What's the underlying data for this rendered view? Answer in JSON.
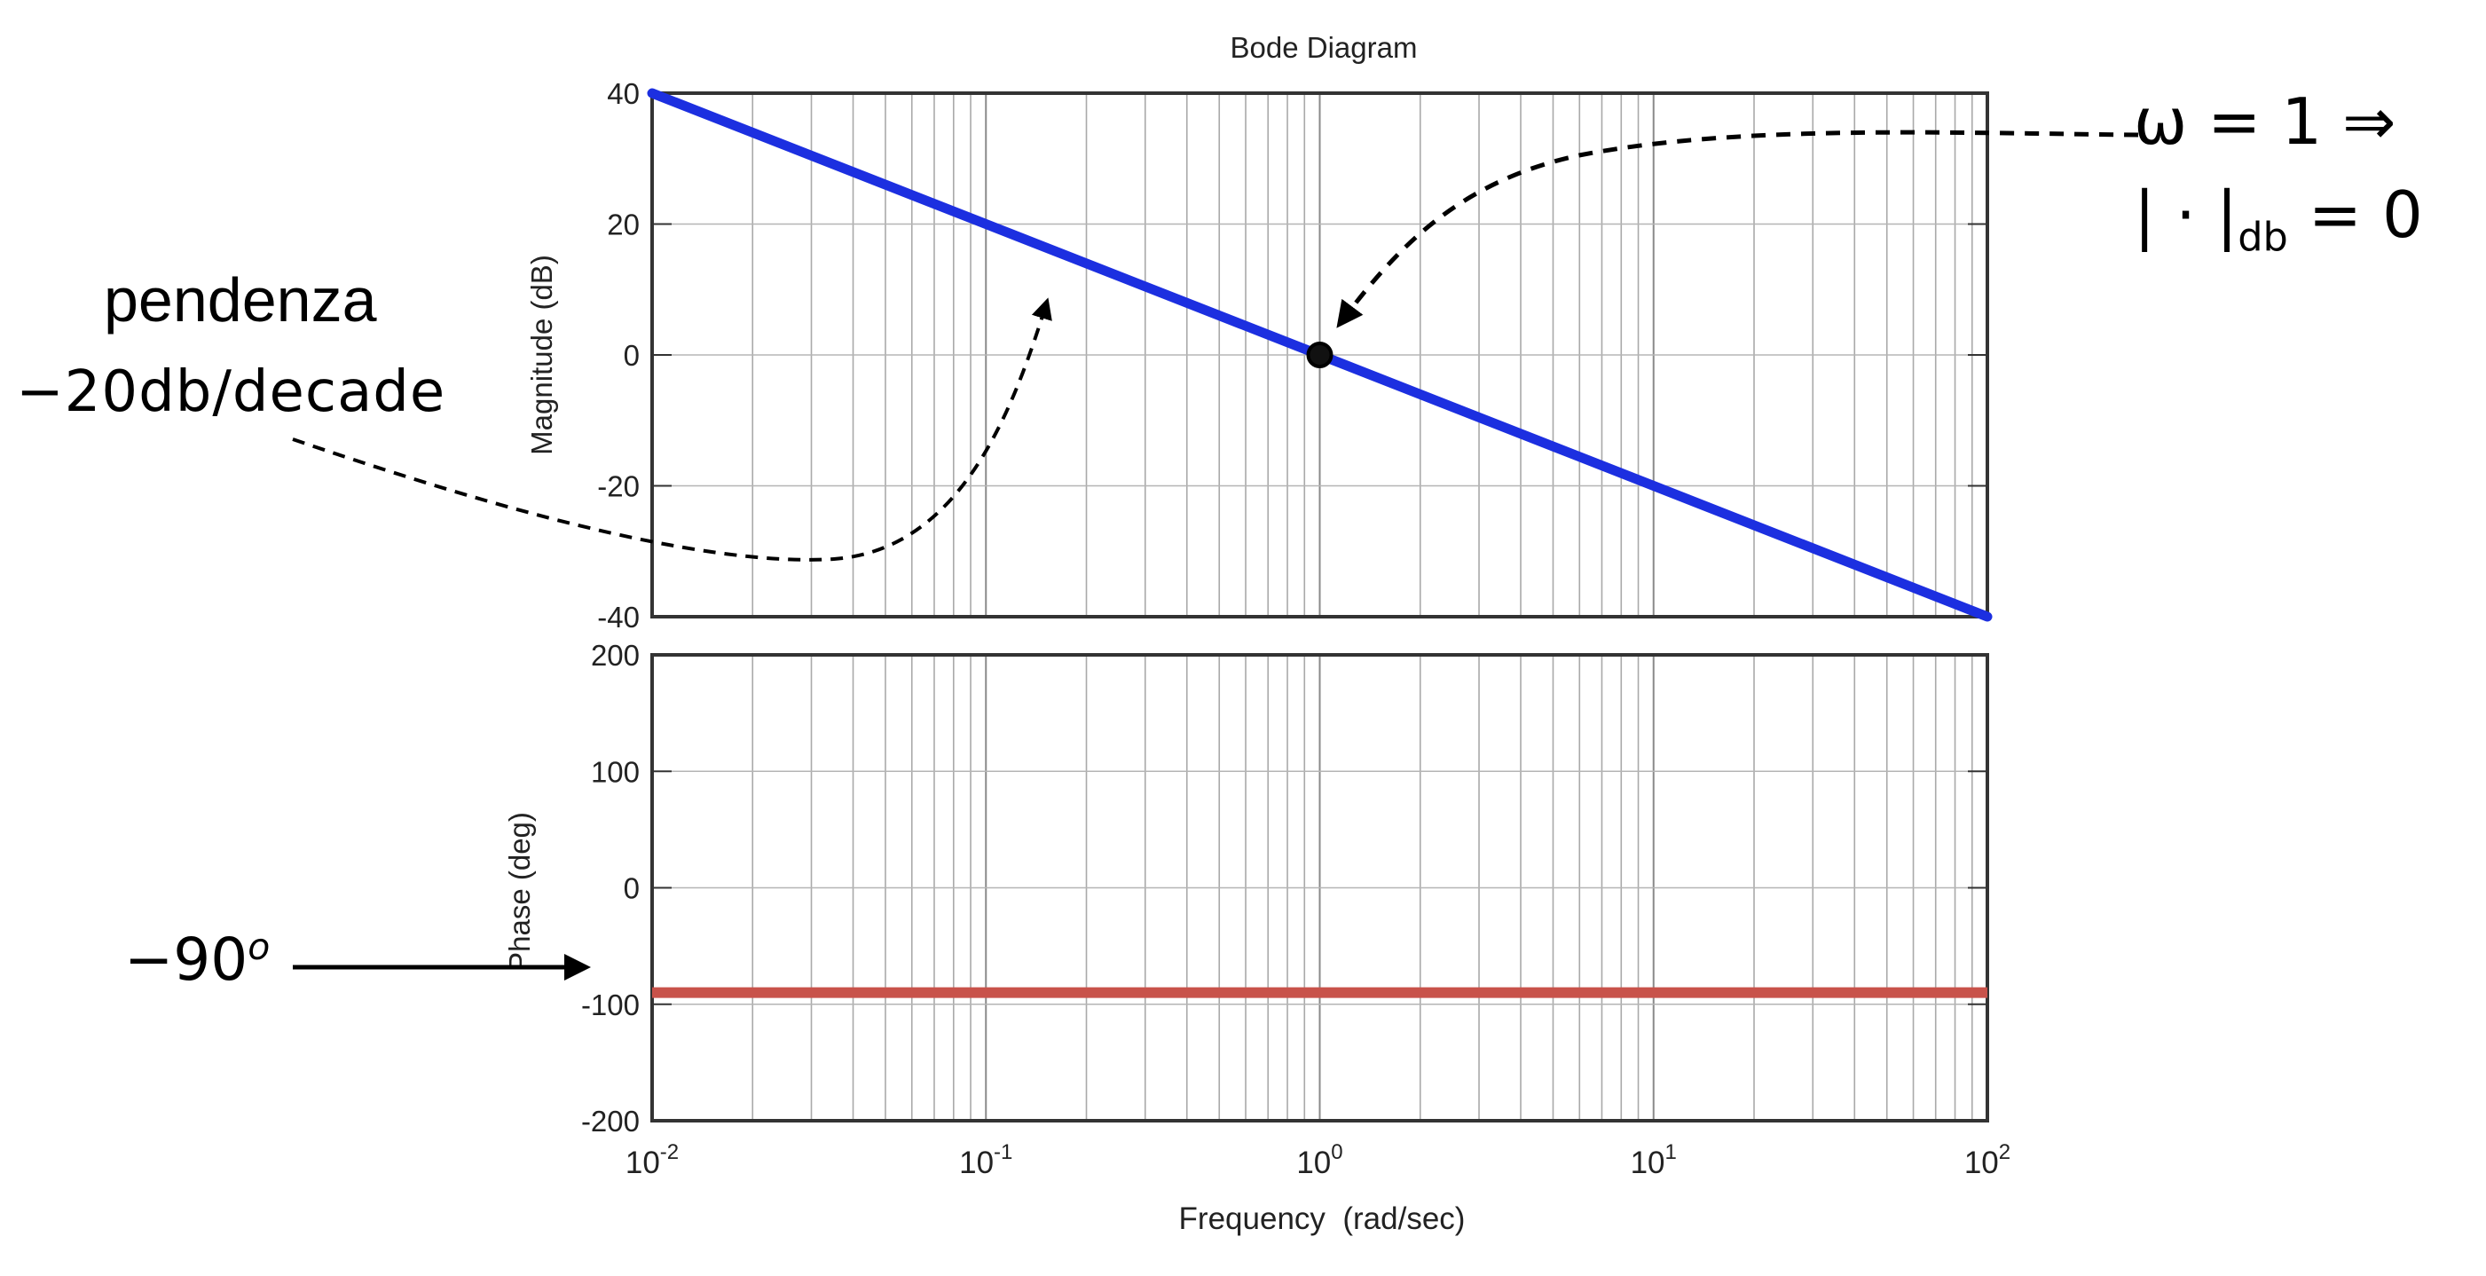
{
  "chart_data": [
    {
      "panel": "magnitude",
      "type": "line",
      "title": "Bode Diagram",
      "ylabel": "Magnitude (dB)",
      "xscale": "log",
      "xlim": [
        0.01,
        100
      ],
      "ylim": [
        -40,
        40
      ],
      "y_ticks": [
        "40",
        "20",
        "0",
        "-20",
        "-40"
      ],
      "grid": true,
      "series": [
        {
          "x": [
            0.01,
            100
          ],
          "y": [
            40,
            -40
          ],
          "color": "#1c2fe0"
        }
      ],
      "highlight_point": {
        "x": 1,
        "y": 0
      }
    },
    {
      "panel": "phase",
      "type": "line",
      "ylabel": "Phase (deg)",
      "xlabel": "Frequency  (rad/sec)",
      "xscale": "log",
      "xlim": [
        0.01,
        100
      ],
      "ylim": [
        -200,
        200
      ],
      "y_ticks": [
        "200",
        "100",
        "0",
        "-100",
        "-200"
      ],
      "grid": true,
      "series": [
        {
          "x": [
            0.01,
            100
          ],
          "y": [
            -90,
            -90
          ],
          "color": "#c8524a"
        }
      ]
    }
  ],
  "x_ticks": [
    {
      "base": "10",
      "exp": "-2"
    },
    {
      "base": "10",
      "exp": "-1"
    },
    {
      "base": "10",
      "exp": "0"
    },
    {
      "base": "10",
      "exp": "1"
    },
    {
      "base": "10",
      "exp": "2"
    }
  ],
  "annotations": {
    "slope_title": "pendenza",
    "slope_value": "−20db/decade",
    "omega_line": "ω = 1 ⇒",
    "magnitude_prefix": "| · |",
    "magnitude_sub": "db",
    "magnitude_suffix": " = 0",
    "phase_base": "−90",
    "phase_sup": "o"
  }
}
